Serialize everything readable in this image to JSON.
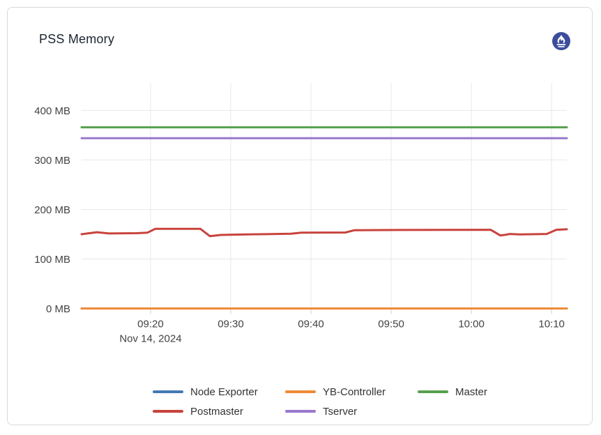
{
  "card": {
    "title": "PSS Memory"
  },
  "prometheus_icon": {
    "semantic": "prometheus-logo",
    "circle_color": "#3d4d9b",
    "flame_color": "#ffffff"
  },
  "chart_data": {
    "type": "line",
    "title": "PSS Memory",
    "x_axis": {
      "unit": "time (HH:MM)",
      "date_label": "Nov 14, 2024",
      "range_minutes_of_day": [
        551.4,
        611.9
      ],
      "ticks": [
        {
          "m": 560,
          "label": "09:20",
          "sublabel": "Nov 14, 2024"
        },
        {
          "m": 570,
          "label": "09:30"
        },
        {
          "m": 580,
          "label": "09:40"
        },
        {
          "m": 590,
          "label": "09:50"
        },
        {
          "m": 600,
          "label": "10:00"
        },
        {
          "m": 610,
          "label": "10:10"
        }
      ]
    },
    "y_axis": {
      "unit": "MB",
      "range_mb": [
        0,
        440
      ],
      "ticks": [
        {
          "v": 0,
          "label": "0 MB"
        },
        {
          "v": 100,
          "label": "100 MB"
        },
        {
          "v": 200,
          "label": "200 MB"
        },
        {
          "v": 300,
          "label": "300 MB"
        },
        {
          "v": 400,
          "label": "400 MB"
        }
      ]
    },
    "grid": true,
    "legend_position": "bottom",
    "colors": {
      "grid_line": "#e8e8e8",
      "tick_mark": "#cfcfcf",
      "axis_text": "#424242"
    },
    "series": [
      {
        "name": "Node Exporter",
        "color": "#4379b2",
        "stroke_width": 3,
        "points": [
          [
            551.4,
            0
          ],
          [
            611.9,
            0
          ]
        ]
      },
      {
        "name": "YB-Controller",
        "color": "#ee8a38",
        "stroke_width": 3,
        "points": [
          [
            551.4,
            0
          ],
          [
            611.9,
            0
          ]
        ]
      },
      {
        "name": "Master",
        "color": "#57a04f",
        "stroke_width": 3,
        "points": [
          [
            551.4,
            366
          ],
          [
            611.9,
            366
          ]
        ]
      },
      {
        "name": "Postmaster",
        "color": "#c8433c",
        "stroke_width": 3,
        "points": [
          [
            551.4,
            150
          ],
          [
            553.3,
            154
          ],
          [
            554.8,
            151.5
          ],
          [
            558.3,
            152
          ],
          [
            559.6,
            153
          ],
          [
            560.6,
            161
          ],
          [
            566.2,
            161
          ],
          [
            567.4,
            146
          ],
          [
            568.8,
            148.5
          ],
          [
            572,
            149.5
          ],
          [
            577.5,
            151
          ],
          [
            578.8,
            153
          ],
          [
            584.3,
            153.5
          ],
          [
            585.4,
            158
          ],
          [
            591,
            158.5
          ],
          [
            602.4,
            159
          ],
          [
            603.6,
            147.5
          ],
          [
            604.3,
            149
          ],
          [
            604.8,
            150.5
          ],
          [
            606,
            149.5
          ],
          [
            609.4,
            150.5
          ],
          [
            610.6,
            159
          ],
          [
            611.9,
            160
          ]
        ]
      },
      {
        "name": "Tserver",
        "color": "#9878cd",
        "stroke_width": 3,
        "points": [
          [
            551.4,
            344
          ],
          [
            611.9,
            344
          ]
        ]
      }
    ]
  }
}
